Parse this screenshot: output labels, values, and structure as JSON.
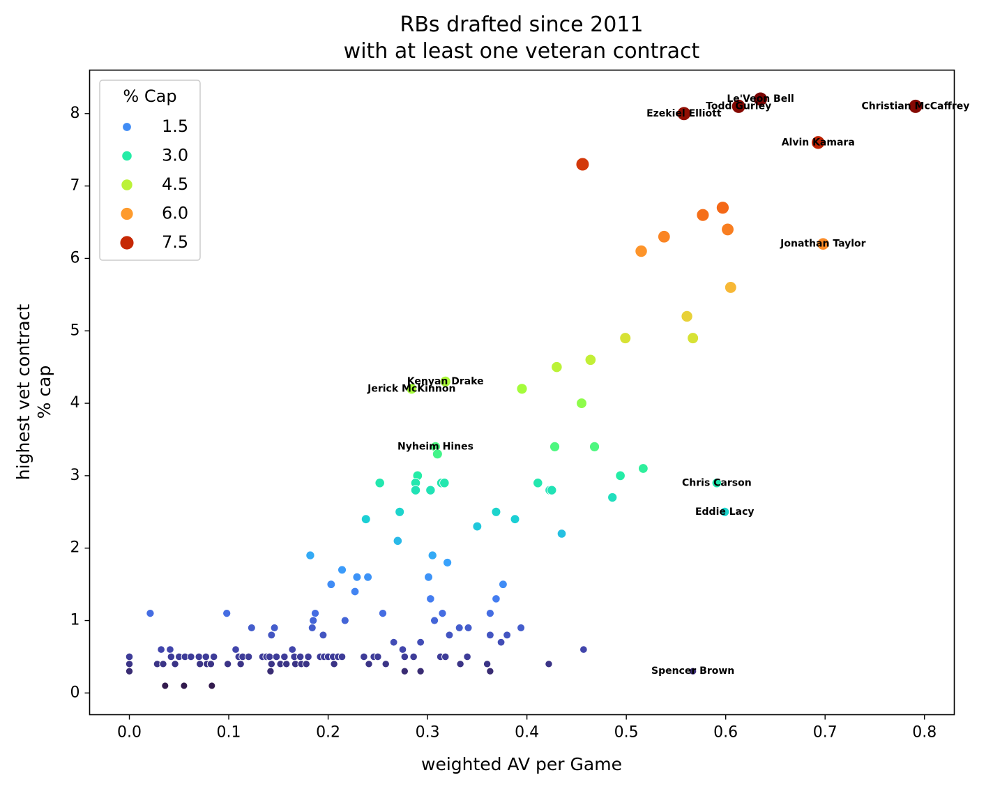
{
  "chart_data": {
    "type": "scatter",
    "title": [
      "RBs drafted since 2011",
      "with at least one veteran contract"
    ],
    "xlabel": "weighted AV per Game",
    "ylabel": [
      "highest vet contract",
      "% cap"
    ],
    "xlim": [
      -0.04,
      0.83
    ],
    "ylim": [
      -0.3,
      8.6
    ],
    "xticks": [
      "0.0",
      "0.1",
      "0.2",
      "0.3",
      "0.4",
      "0.5",
      "0.6",
      "0.7",
      "0.8"
    ],
    "yticks": [
      "0",
      "1",
      "2",
      "3",
      "4",
      "5",
      "6",
      "7",
      "8"
    ],
    "grid": false,
    "legend": {
      "title": "% Cap",
      "placement": "top-left",
      "entries": [
        {
          "label": "1.5",
          "value": 1.5
        },
        {
          "label": "3.0",
          "value": 3.0
        },
        {
          "label": "4.5",
          "value": 4.5
        },
        {
          "label": "6.0",
          "value": 6.0
        },
        {
          "label": "7.5",
          "value": 7.5
        }
      ]
    },
    "colormap": "turbo",
    "annotations": [
      {
        "text": "Christian McCaffrey",
        "x": 0.791,
        "y": 8.1
      },
      {
        "text": "Le'Veon Bell",
        "x": 0.635,
        "y": 8.2
      },
      {
        "text": "Todd Gurley",
        "x": 0.613,
        "y": 8.1
      },
      {
        "text": "Ezekiel Elliott",
        "x": 0.558,
        "y": 8.0
      },
      {
        "text": "Alvin Kamara",
        "x": 0.693,
        "y": 7.6
      },
      {
        "text": "Jonathan Taylor",
        "x": 0.698,
        "y": 6.2
      },
      {
        "text": "Kenyan Drake",
        "x": 0.318,
        "y": 4.3
      },
      {
        "text": "Jerick McKinnon",
        "x": 0.284,
        "y": 4.2
      },
      {
        "text": "Nyheim Hines",
        "x": 0.308,
        "y": 3.4
      },
      {
        "text": "Chris Carson",
        "x": 0.591,
        "y": 2.9
      },
      {
        "text": "Eddie Lacy",
        "x": 0.599,
        "y": 2.5
      },
      {
        "text": "Spencer Brown",
        "x": 0.567,
        "y": 0.3
      }
    ],
    "points": [
      [
        0.791,
        8.1
      ],
      [
        0.635,
        8.2
      ],
      [
        0.613,
        8.1
      ],
      [
        0.558,
        8.0
      ],
      [
        0.693,
        7.6
      ],
      [
        0.456,
        7.3
      ],
      [
        0.597,
        6.7
      ],
      [
        0.577,
        6.6
      ],
      [
        0.602,
        6.4
      ],
      [
        0.538,
        6.3
      ],
      [
        0.698,
        6.2
      ],
      [
        0.515,
        6.1
      ],
      [
        0.605,
        5.6
      ],
      [
        0.561,
        5.2
      ],
      [
        0.499,
        4.9
      ],
      [
        0.567,
        4.9
      ],
      [
        0.43,
        4.5
      ],
      [
        0.464,
        4.6
      ],
      [
        0.318,
        4.3
      ],
      [
        0.284,
        4.2
      ],
      [
        0.395,
        4.2
      ],
      [
        0.455,
        4.0
      ],
      [
        0.308,
        3.4
      ],
      [
        0.31,
        3.3
      ],
      [
        0.428,
        3.4
      ],
      [
        0.468,
        3.4
      ],
      [
        0.517,
        3.1
      ],
      [
        0.29,
        3.0
      ],
      [
        0.494,
        3.0
      ],
      [
        0.252,
        2.9
      ],
      [
        0.288,
        2.9
      ],
      [
        0.314,
        2.9
      ],
      [
        0.317,
        2.9
      ],
      [
        0.411,
        2.9
      ],
      [
        0.591,
        2.9
      ],
      [
        0.288,
        2.8
      ],
      [
        0.303,
        2.8
      ],
      [
        0.423,
        2.8
      ],
      [
        0.425,
        2.8
      ],
      [
        0.486,
        2.7
      ],
      [
        0.272,
        2.5
      ],
      [
        0.369,
        2.5
      ],
      [
        0.599,
        2.5
      ],
      [
        0.238,
        2.4
      ],
      [
        0.388,
        2.4
      ],
      [
        0.35,
        2.3
      ],
      [
        0.435,
        2.2
      ],
      [
        0.27,
        2.1
      ],
      [
        0.182,
        1.9
      ],
      [
        0.305,
        1.9
      ],
      [
        0.32,
        1.8
      ],
      [
        0.214,
        1.7
      ],
      [
        0.229,
        1.6
      ],
      [
        0.24,
        1.6
      ],
      [
        0.301,
        1.6
      ],
      [
        0.203,
        1.5
      ],
      [
        0.376,
        1.5
      ],
      [
        0.227,
        1.4
      ],
      [
        0.303,
        1.3
      ],
      [
        0.369,
        1.3
      ],
      [
        0.021,
        1.1
      ],
      [
        0.098,
        1.1
      ],
      [
        0.187,
        1.1
      ],
      [
        0.255,
        1.1
      ],
      [
        0.315,
        1.1
      ],
      [
        0.363,
        1.1
      ],
      [
        0.185,
        1.0
      ],
      [
        0.217,
        1.0
      ],
      [
        0.307,
        1.0
      ],
      [
        0.123,
        0.9
      ],
      [
        0.146,
        0.9
      ],
      [
        0.184,
        0.9
      ],
      [
        0.332,
        0.9
      ],
      [
        0.341,
        0.9
      ],
      [
        0.394,
        0.9
      ],
      [
        0.143,
        0.8
      ],
      [
        0.195,
        0.8
      ],
      [
        0.322,
        0.8
      ],
      [
        0.363,
        0.8
      ],
      [
        0.38,
        0.8
      ],
      [
        0.266,
        0.7
      ],
      [
        0.293,
        0.7
      ],
      [
        0.374,
        0.7
      ],
      [
        0.032,
        0.6
      ],
      [
        0.041,
        0.6
      ],
      [
        0.107,
        0.6
      ],
      [
        0.164,
        0.6
      ],
      [
        0.275,
        0.6
      ],
      [
        0.457,
        0.6
      ],
      [
        0.0,
        0.5
      ],
      [
        0.042,
        0.5
      ],
      [
        0.05,
        0.5
      ],
      [
        0.056,
        0.5
      ],
      [
        0.062,
        0.5
      ],
      [
        0.07,
        0.5
      ],
      [
        0.077,
        0.5
      ],
      [
        0.085,
        0.5
      ],
      [
        0.11,
        0.5
      ],
      [
        0.114,
        0.5
      ],
      [
        0.12,
        0.5
      ],
      [
        0.134,
        0.5
      ],
      [
        0.138,
        0.5
      ],
      [
        0.141,
        0.5
      ],
      [
        0.148,
        0.5
      ],
      [
        0.156,
        0.5
      ],
      [
        0.166,
        0.5
      ],
      [
        0.172,
        0.5
      ],
      [
        0.18,
        0.5
      ],
      [
        0.192,
        0.5
      ],
      [
        0.196,
        0.5
      ],
      [
        0.2,
        0.5
      ],
      [
        0.205,
        0.5
      ],
      [
        0.21,
        0.5
      ],
      [
        0.214,
        0.5
      ],
      [
        0.236,
        0.5
      ],
      [
        0.246,
        0.5
      ],
      [
        0.25,
        0.5
      ],
      [
        0.277,
        0.5
      ],
      [
        0.286,
        0.5
      ],
      [
        0.313,
        0.5
      ],
      [
        0.318,
        0.5
      ],
      [
        0.34,
        0.5
      ],
      [
        0.0,
        0.4
      ],
      [
        0.028,
        0.4
      ],
      [
        0.034,
        0.4
      ],
      [
        0.046,
        0.4
      ],
      [
        0.071,
        0.4
      ],
      [
        0.078,
        0.4
      ],
      [
        0.082,
        0.4
      ],
      [
        0.099,
        0.4
      ],
      [
        0.112,
        0.4
      ],
      [
        0.143,
        0.4
      ],
      [
        0.152,
        0.4
      ],
      [
        0.158,
        0.4
      ],
      [
        0.167,
        0.4
      ],
      [
        0.173,
        0.4
      ],
      [
        0.178,
        0.4
      ],
      [
        0.206,
        0.4
      ],
      [
        0.241,
        0.4
      ],
      [
        0.258,
        0.4
      ],
      [
        0.333,
        0.4
      ],
      [
        0.36,
        0.4
      ],
      [
        0.422,
        0.4
      ],
      [
        0.0,
        0.3
      ],
      [
        0.142,
        0.3
      ],
      [
        0.277,
        0.3
      ],
      [
        0.293,
        0.3
      ],
      [
        0.363,
        0.3
      ],
      [
        0.567,
        0.3
      ],
      [
        0.036,
        0.1
      ],
      [
        0.055,
        0.1
      ],
      [
        0.083,
        0.1
      ]
    ]
  }
}
